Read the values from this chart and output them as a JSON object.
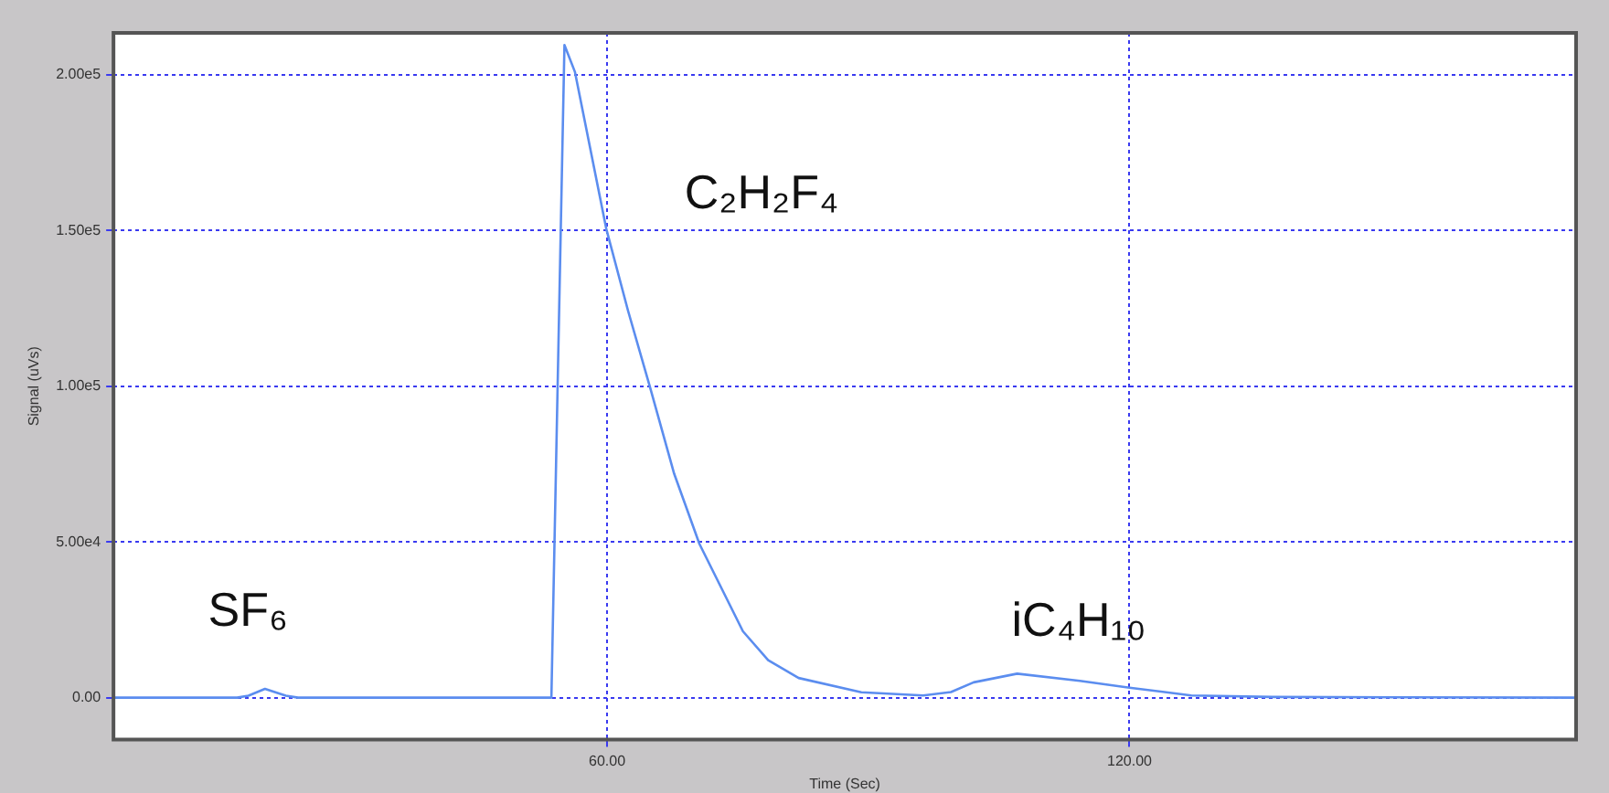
{
  "chart_data": {
    "type": "line",
    "xlabel": "Time (Sec)",
    "ylabel": "Signal (uVs)",
    "xlim": [
      3.3,
      171.3
    ],
    "xticks": [
      {
        "value": 60,
        "label": "60.00"
      },
      {
        "value": 120,
        "label": "120.00"
      }
    ],
    "ylim": [
      -13500,
      213500
    ],
    "yticks": [
      {
        "value": 0,
        "label": "0.00"
      },
      {
        "value": 50000,
        "label": "5.00e4"
      },
      {
        "value": 100000,
        "label": "1.00e5"
      },
      {
        "value": 150000,
        "label": "1.50e5"
      },
      {
        "value": 200000,
        "label": "2.00e5"
      }
    ],
    "grid": true,
    "marker": "none",
    "line_style": "solid",
    "series": [
      {
        "color": "#5b8def",
        "x": [
          3.3,
          17.5,
          18.8,
          20.7,
          23.1,
          24.5,
          53.4,
          53.6,
          55.1,
          56.3,
          59.9,
          62.4,
          64.9,
          67.7,
          70.6,
          75.6,
          78.5,
          82.0,
          89.2,
          96.3,
          99.5,
          102.1,
          107.1,
          114.3,
          120.0,
          127.1,
          136.4,
          171.3
        ],
        "values": [
          0,
          0,
          600,
          2800,
          600,
          0,
          0,
          0,
          209600,
          201000,
          150600,
          124300,
          100000,
          71900,
          49400,
          21300,
          12000,
          6300,
          1700,
          700,
          1800,
          4900,
          7700,
          5400,
          3200,
          700,
          200,
          0
        ]
      }
    ],
    "annotations": [
      "SF₆",
      "C₂H₂F₄",
      "iC₄H₁₀"
    ]
  }
}
